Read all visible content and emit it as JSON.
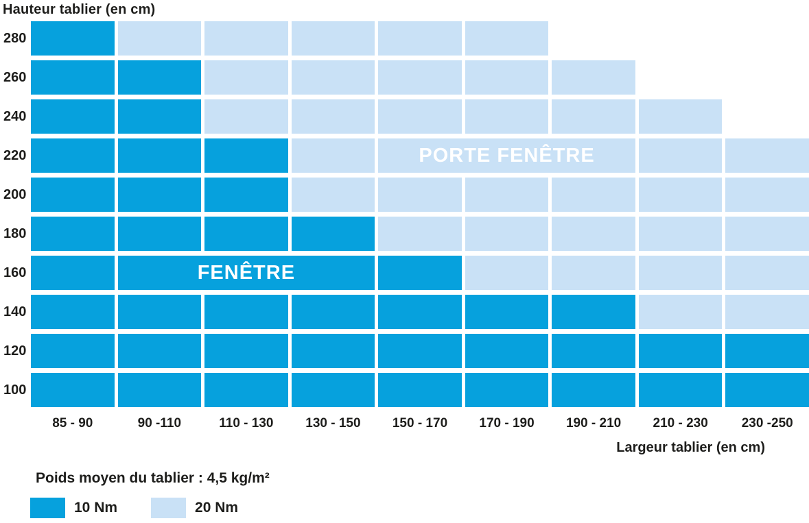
{
  "colors": {
    "dark": "#06A1DD",
    "light": "#C9E1F6",
    "text": "#1d1d1b",
    "band_text": "#ffffff"
  },
  "legend": {
    "weight_note": "Poids moyen du tablier : 4,5 kg/m²",
    "items": [
      {
        "label": "10 Nm",
        "value": 10,
        "color": "#06A1DD"
      },
      {
        "label": "20 Nm",
        "value": 20,
        "color": "#C9E1F6"
      }
    ]
  },
  "chart_data": {
    "type": "heatmap",
    "title": "",
    "ylabel": "Hauteur tablier (en cm)",
    "xlabel": "Largeur tablier (en cm)",
    "unit": "Nm",
    "x_categories": [
      "85 - 90",
      "90 -110",
      "110 - 130",
      "130 - 150",
      "150 - 170",
      "170 - 190",
      "190 - 210",
      "210 - 230",
      "230 -250"
    ],
    "y_categories": [
      "280",
      "260",
      "240",
      "220",
      "200",
      "180",
      "160",
      "140",
      "120",
      "100"
    ],
    "matrix": [
      [
        10,
        20,
        20,
        20,
        20,
        20,
        null,
        null,
        null
      ],
      [
        10,
        10,
        20,
        20,
        20,
        20,
        20,
        null,
        null
      ],
      [
        10,
        10,
        20,
        20,
        20,
        20,
        20,
        20,
        null
      ],
      [
        10,
        10,
        10,
        20,
        20,
        20,
        20,
        20,
        20
      ],
      [
        10,
        10,
        10,
        20,
        20,
        20,
        20,
        20,
        20
      ],
      [
        10,
        10,
        10,
        10,
        20,
        20,
        20,
        20,
        20
      ],
      [
        10,
        10,
        10,
        10,
        10,
        20,
        20,
        20,
        20
      ],
      [
        10,
        10,
        10,
        10,
        10,
        10,
        10,
        20,
        20
      ],
      [
        10,
        10,
        10,
        10,
        10,
        10,
        10,
        10,
        10
      ],
      [
        10,
        10,
        10,
        10,
        10,
        10,
        10,
        10,
        10
      ]
    ],
    "annotations": [
      {
        "text": "PORTE FENÊTRE",
        "row_label": "220",
        "row_index": 3,
        "col_start": 5,
        "col_end": 7
      },
      {
        "text": "FENÊTRE",
        "row_label": "160",
        "row_index": 6,
        "col_start": 2,
        "col_end": 4
      }
    ]
  }
}
